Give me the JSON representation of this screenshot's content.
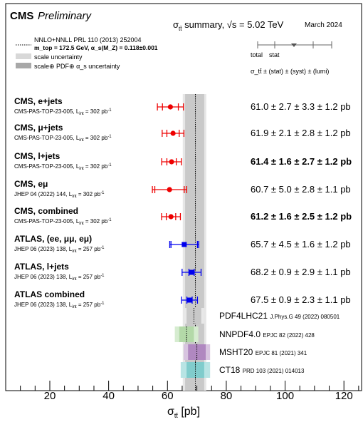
{
  "chart_data": {
    "type": "scatter",
    "header": {
      "cms": "CMS",
      "preliminary": "Preliminary",
      "summary_prefix": "σ",
      "summary_sub": "tt̄",
      "summary_text": " summary, √s = 5.02 TeV",
      "date": "March 2024"
    },
    "theory_legend": {
      "line1": "NNLO+NNLL  PRL 110 (2013) 252004",
      "line2": "m_top = 172.5 GeV, α_s(M_Z) = 0.118±0.001",
      "scale": "scale uncertainty",
      "scale_pdf": "scale⊕ PDF⊕ α_s uncertainty"
    },
    "error_legend": {
      "total": "total",
      "stat": "stat",
      "header": "σ_tt̄ ± (stat) ± (syst) ± (lumi)"
    },
    "x_axis": {
      "label": "σ_tt̄ [pb]",
      "min": 5,
      "max": 126,
      "ticks": [
        20,
        40,
        60,
        80,
        100,
        120
      ],
      "minor_step": 5
    },
    "theory": {
      "central": 69.5,
      "scale_band": [
        66.0,
        72.5
      ],
      "total_band": [
        65.2,
        73.2
      ]
    },
    "measurements": [
      {
        "name": "CMS, e+jets",
        "bold": false,
        "ref": "CMS-PAS-TOP-23-005,  L",
        "ref_sub": "int",
        "ref_tail": " = 302 pb",
        "ref_sup": "-1",
        "value": 61.0,
        "stat": 2.7,
        "syst": 3.3,
        "lumi": 1.2,
        "value_text": "61.0 ± 2.7 ± 3.3 ± 1.2 pb",
        "color": "#ee0000",
        "marker": "circle"
      },
      {
        "name": "CMS, μ+jets",
        "bold": false,
        "ref": "CMS-PAS-TOP-23-005,  L",
        "ref_sub": "int",
        "ref_tail": " = 302 pb",
        "ref_sup": "-1",
        "value": 61.9,
        "stat": 2.1,
        "syst": 2.8,
        "lumi": 1.2,
        "value_text": "61.9 ± 2.1 ± 2.8 ± 1.2 pb",
        "color": "#ee0000",
        "marker": "circle"
      },
      {
        "name": "CMS, l+jets",
        "bold": true,
        "ref": "CMS-PAS-TOP-23-005,  L",
        "ref_sub": "int",
        "ref_tail": " = 302 pb",
        "ref_sup": "-1",
        "value": 61.4,
        "stat": 1.6,
        "syst": 2.7,
        "lumi": 1.2,
        "value_text": "61.4 ± 1.6 ± 2.7 ± 1.2 pb",
        "color": "#ee0000",
        "marker": "circle"
      },
      {
        "name": "CMS, eμ",
        "bold": false,
        "ref": "JHEP 04 (2022) 144,  L",
        "ref_sub": "int",
        "ref_tail": " = 302 pb",
        "ref_sup": "-1",
        "value": 60.7,
        "stat": 5.0,
        "syst": 2.8,
        "lumi": 1.1,
        "value_text": "60.7 ± 5.0 ± 2.8 ± 1.1 pb",
        "color": "#ee0000",
        "marker": "circle"
      },
      {
        "name": "CMS, combined",
        "bold": true,
        "ref": "CMS-PAS-TOP-23-005,  L",
        "ref_sub": "int",
        "ref_tail": " = 302 pb",
        "ref_sup": "-1",
        "value": 61.2,
        "stat": 1.6,
        "syst": 2.5,
        "lumi": 1.2,
        "value_text": "61.2 ± 1.6 ± 2.5 ± 1.2 pb",
        "color": "#ee0000",
        "marker": "circle"
      },
      {
        "name": "ATLAS, (ee, μμ, eμ)",
        "bold": false,
        "ref": "JHEP 06 (2023) 138,  L",
        "ref_sub": "int",
        "ref_tail": " = 257 pb",
        "ref_sup": "-1",
        "value": 65.7,
        "stat": 4.5,
        "syst": 1.6,
        "lumi": 1.2,
        "value_text": "65.7 ± 4.5 ± 1.6 ± 1.2 pb",
        "color": "#0000ee",
        "marker": "square"
      },
      {
        "name": "ATLAS, l+jets",
        "bold": false,
        "ref": "JHEP 06 (2023) 138,  L",
        "ref_sub": "int",
        "ref_tail": " = 257 pb",
        "ref_sup": "-1",
        "value": 68.2,
        "stat": 0.9,
        "syst": 2.9,
        "lumi": 1.1,
        "value_text": "68.2 ± 0.9 ± 2.9 ± 1.1 pb",
        "color": "#0000ee",
        "marker": "square"
      },
      {
        "name": "ATLAS combined",
        "bold": false,
        "ref": "JHEP 06 (2023) 138,  L",
        "ref_sub": "int",
        "ref_tail": " = 257 pb",
        "ref_sup": "-1",
        "value": 67.5,
        "stat": 0.9,
        "syst": 2.3,
        "lumi": 1.1,
        "value_text": "67.5 ± 0.9 ± 2.3 ± 1.1 pb",
        "color": "#0000ee",
        "marker": "square"
      }
    ],
    "pdf_sets": [
      {
        "name": "PDF4LHC21",
        "ref": "J.Phys.G 49 (2022) 080501",
        "central": 69.0,
        "inner": [
          66.5,
          71.5
        ],
        "outer": [
          65.5,
          72.5
        ],
        "inner_color": "#c8c8c8",
        "outer_color": "#e8e8e8"
      },
      {
        "name": "NNPDF4.0",
        "ref": "EPJC 82 (2022) 428",
        "central": 66.5,
        "inner": [
          64.0,
          69.0
        ],
        "outer": [
          62.5,
          70.5
        ],
        "inner_color": "#b3d9a8",
        "outer_color": "#d6ecd0"
      },
      {
        "name": "MSHT20",
        "ref": "EPJC 81 (2021) 341",
        "central": 70.0,
        "inner": [
          67.0,
          73.0
        ],
        "outer": [
          65.5,
          74.5
        ],
        "inner_color": "#b088c0",
        "outer_color": "#d8c4e0"
      },
      {
        "name": "CT18",
        "ref": "PRD 103 (2021) 014013",
        "central": 69.5,
        "inner": [
          66.5,
          72.5
        ],
        "outer": [
          64.5,
          74.5
        ],
        "inner_color": "#80cccc",
        "outer_color": "#b8e4e4"
      }
    ]
  }
}
